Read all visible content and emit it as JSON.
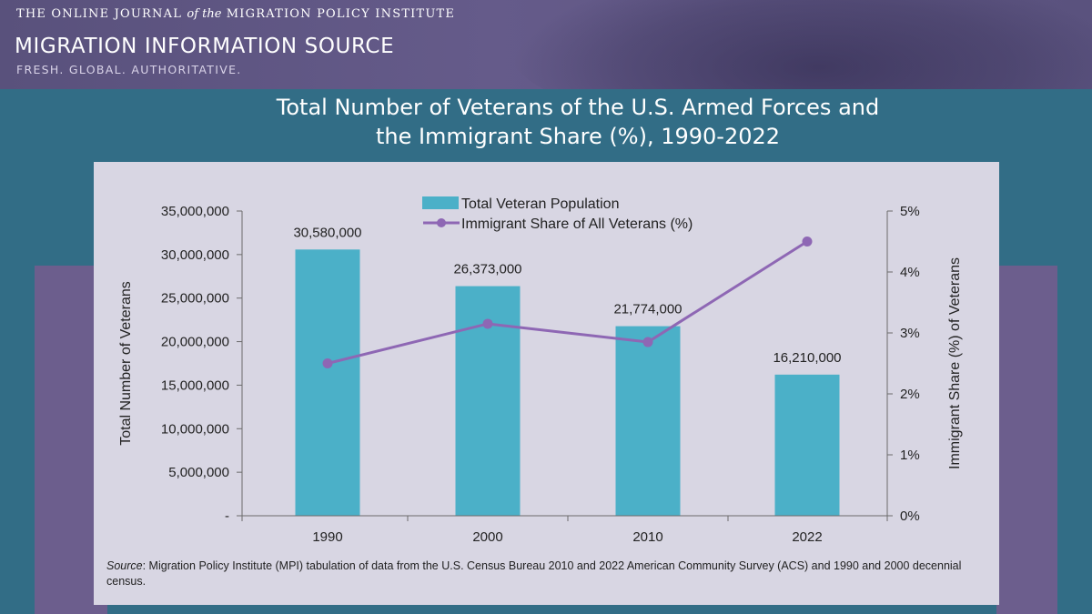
{
  "header": {
    "kicker_pre": "THE ONLINE JOURNAL",
    "kicker_of": "of the",
    "kicker_post": "MIGRATION POLICY INSTITUTE",
    "brand": "MIGRATION INFORMATION SOURCE",
    "tagline": "FRESH. GLOBAL. AUTHORITATIVE."
  },
  "colors": {
    "bar": "#4bb0c8",
    "line": "#8e67b4",
    "background": "#326d86",
    "card": "#d8d6e3",
    "banner": "#5f5684",
    "band": "#6c5e8d"
  },
  "source": {
    "label": "Source",
    "text": ": Migration Policy Institute (MPI) tabulation of data from the U.S. Census Bureau 2010 and 2022 American Community Survey (ACS) and 1990 and 2000 decennial census."
  },
  "chart_data": {
    "type": "bar",
    "title": "Total Number of Veterans of the U.S. Armed Forces and the Immigrant Share (%), 1990-2022",
    "title_lines": [
      "Total Number of Veterans of the U.S. Armed Forces and",
      "the Immigrant Share (%), 1990-2022"
    ],
    "categories": [
      "1990",
      "2000",
      "2010",
      "2022"
    ],
    "series": [
      {
        "name": "Total Veteran Population",
        "type": "bar",
        "axis": "left",
        "values": [
          30580000,
          26373000,
          21774000,
          16210000
        ],
        "labels": [
          "30,580,000",
          "26,373,000",
          "21,774,000",
          "16,210,000"
        ],
        "color": "#4bb0c8"
      },
      {
        "name": "Immigrant Share of All Veterans (%)",
        "type": "line",
        "axis": "right",
        "values": [
          2.5,
          3.15,
          2.85,
          4.5
        ],
        "color": "#8e67b4"
      }
    ],
    "ylabel": "Total Number of Veterans",
    "ylim": [
      0,
      35000000
    ],
    "yticks": [
      0,
      5000000,
      10000000,
      15000000,
      20000000,
      25000000,
      30000000,
      35000000
    ],
    "ytick_labels": [
      "-",
      "5,000,000",
      "10,000,000",
      "15,000,000",
      "20,000,000",
      "25,000,000",
      "30,000,000",
      "35,000,000"
    ],
    "y2label": "Immigrant Share (%) of Veterans",
    "y2lim": [
      0,
      5
    ],
    "y2ticks": [
      0,
      1,
      2,
      3,
      4,
      5
    ],
    "y2tick_labels": [
      "0%",
      "1%",
      "2%",
      "3%",
      "4%",
      "5%"
    ],
    "grid": false,
    "legend": "top-center"
  }
}
